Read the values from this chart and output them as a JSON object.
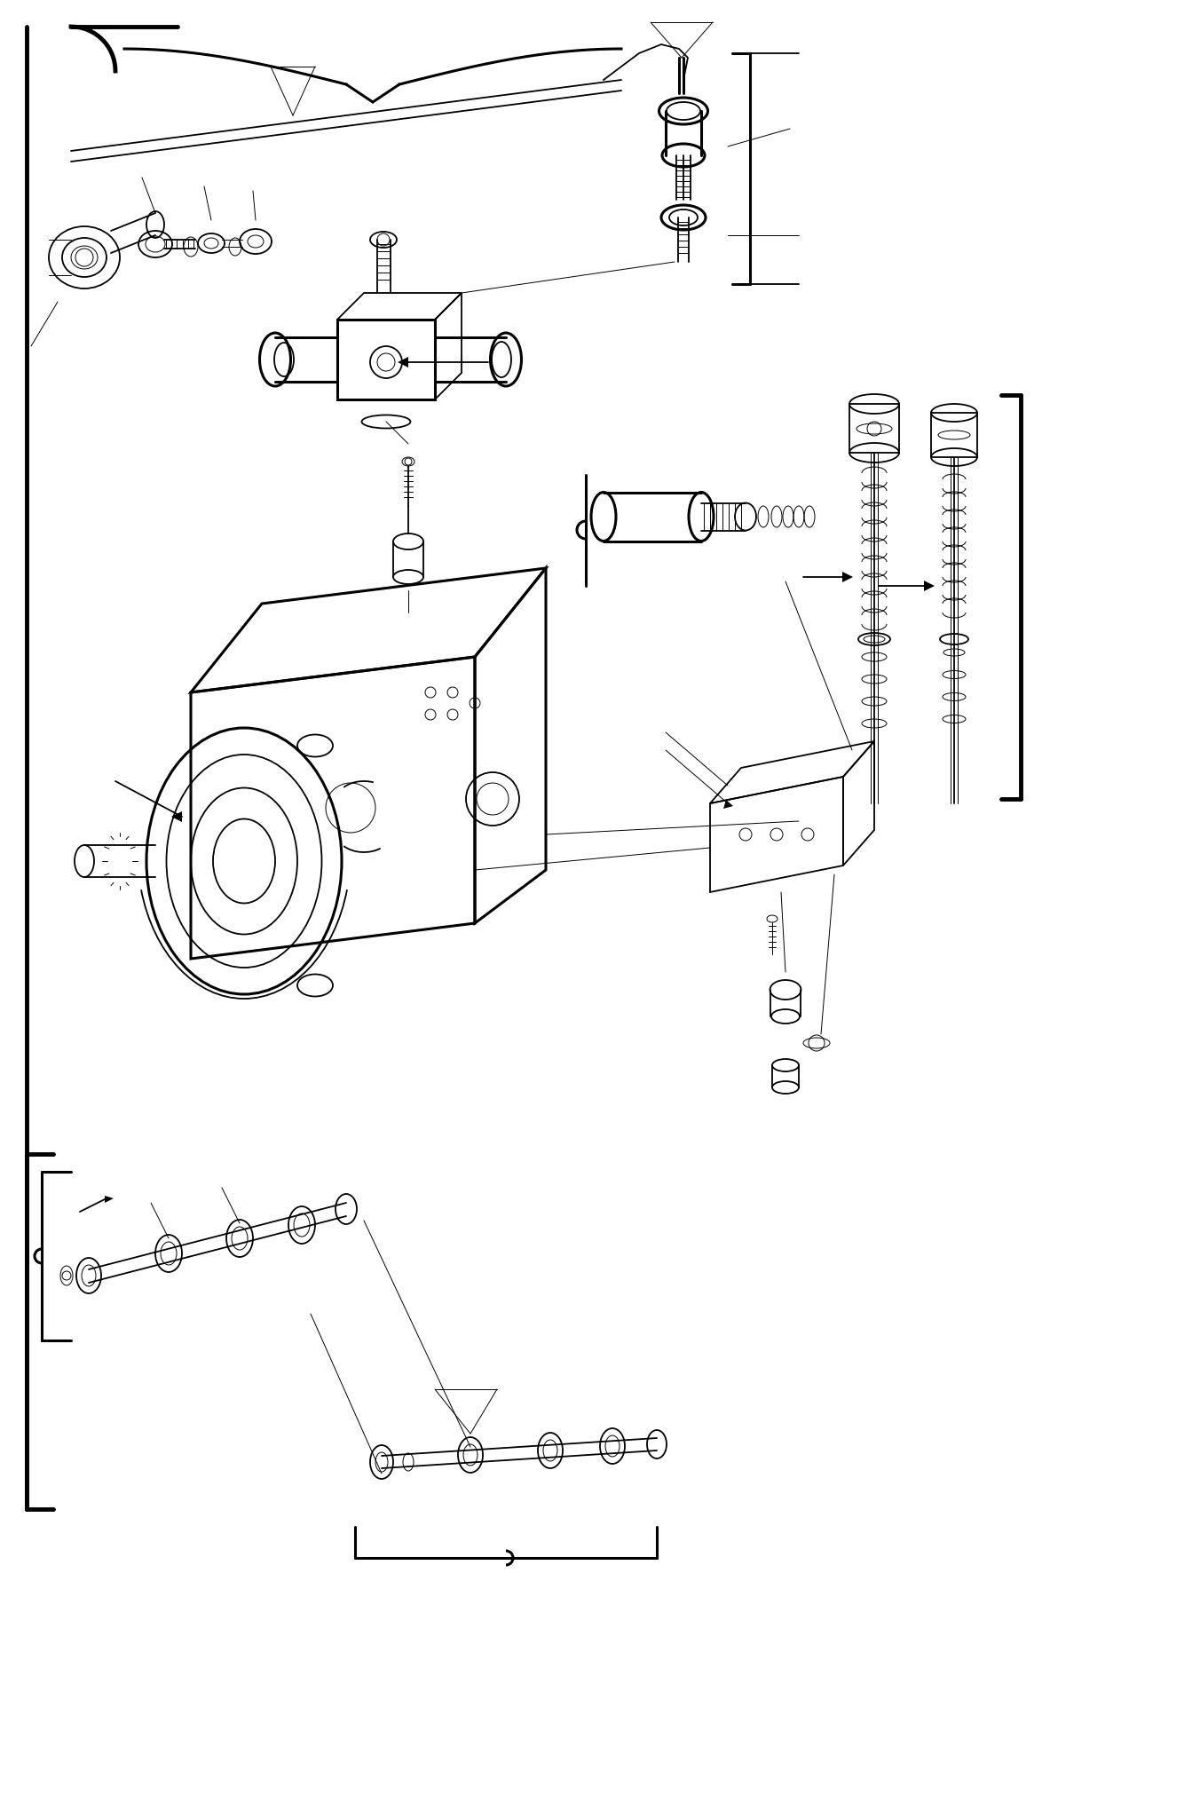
{
  "bg_color": "#ffffff",
  "line_color": "#000000",
  "lw_thin": 0.7,
  "lw_medium": 1.3,
  "lw_thick": 2.2,
  "lw_border": 3.5,
  "figsize": [
    13.43,
    20.48
  ],
  "dpi": 100
}
